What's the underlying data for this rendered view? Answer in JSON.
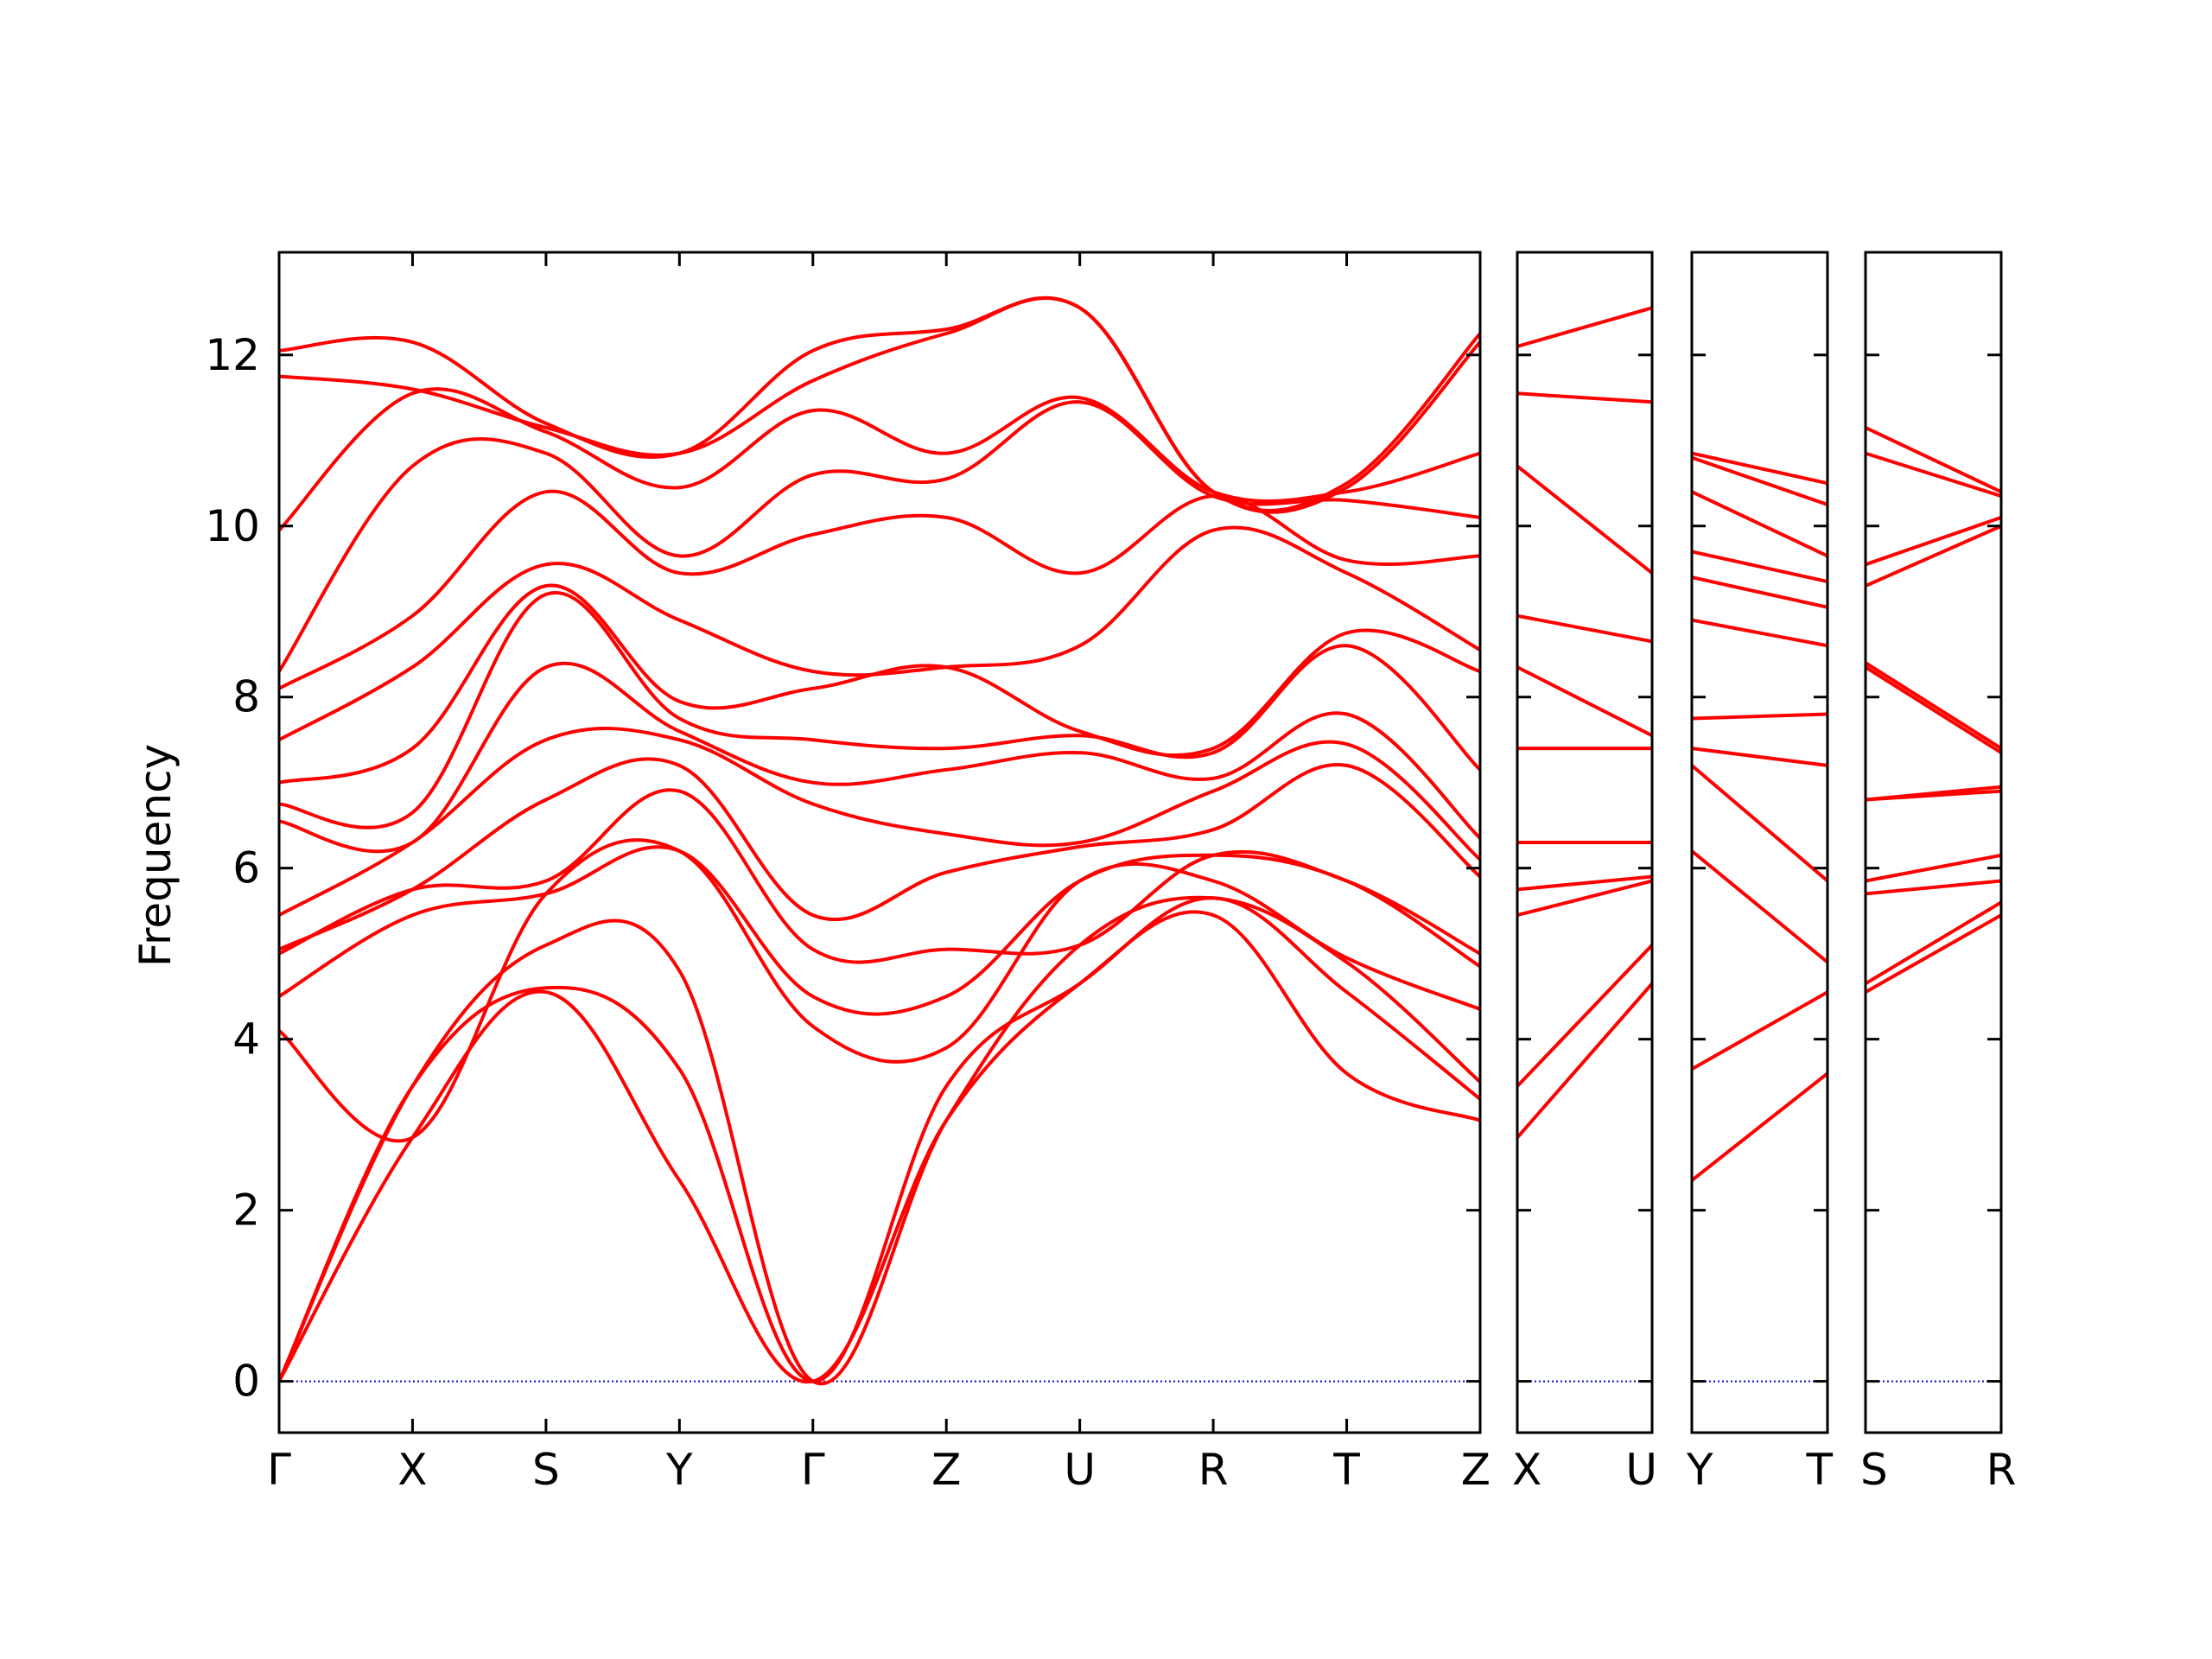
{
  "chart_data": {
    "type": "line",
    "title": "",
    "xlabel": "",
    "ylabel": "Frequency",
    "ylim": [
      -0.6,
      13.2
    ],
    "yticks": [
      0,
      2,
      4,
      6,
      8,
      10,
      12
    ],
    "grid": false,
    "legend": "none",
    "colors": {
      "band": "#ff0000",
      "zero_line": "#0000cc",
      "axis": "#000000"
    },
    "panels": [
      {
        "labels": [
          "Γ",
          "X",
          "S",
          "Y",
          "Γ",
          "Z",
          "U",
          "R",
          "T",
          "Z"
        ],
        "series": [
          {
            "name": "",
            "x": [
              0,
              1,
              2,
              3,
              4,
              5,
              6,
              7,
              8,
              9
            ],
            "y": [
              0,
              2.85,
              4.55,
              2.35,
              0,
              3.05,
              4.65,
              5.45,
              3.6,
              3.05
            ]
          },
          {
            "name": "",
            "x": [
              0,
              1,
              2,
              3,
              4,
              5,
              6,
              7,
              8,
              9
            ],
            "y": [
              0,
              3.45,
              4.6,
              3.65,
              0,
              3.45,
              4.65,
              5.65,
              4.55,
              3.3
            ]
          },
          {
            "name": "",
            "x": [
              0,
              1,
              2,
              3,
              4,
              5,
              6,
              7,
              8,
              9
            ],
            "y": [
              0,
              3.45,
              5.1,
              4.8,
              0,
              3.05,
              5.1,
              5.65,
              4.9,
              3.5
            ]
          },
          {
            "name": "",
            "x": [
              0,
              1,
              2,
              3,
              4,
              5,
              6,
              7,
              8,
              9
            ],
            "y": [
              4.1,
              2.85,
              5.7,
              6.2,
              4.15,
              3.9,
              5.85,
              5.85,
              4.95,
              4.35
            ]
          },
          {
            "name": "",
            "x": [
              0,
              1,
              2,
              3,
              4,
              5,
              6,
              7,
              8,
              9
            ],
            "y": [
              4.5,
              5.45,
              5.7,
              6.2,
              4.5,
              4.5,
              5.85,
              6.15,
              5.85,
              4.85
            ]
          },
          {
            "name": "",
            "x": [
              0,
              1,
              2,
              3,
              4,
              5,
              6,
              7,
              8,
              9
            ],
            "y": [
              5.0,
              5.75,
              5.85,
              6.9,
              5.05,
              5.05,
              5.1,
              6.15,
              5.85,
              5.0
            ]
          },
          {
            "name": "",
            "x": [
              0,
              1,
              2,
              3,
              4,
              5,
              6,
              7,
              8,
              9
            ],
            "y": [
              5.05,
              5.75,
              6.8,
              7.2,
              5.45,
              5.95,
              6.25,
              6.45,
              7.2,
              5.9
            ]
          },
          {
            "name": "",
            "x": [
              0,
              1,
              2,
              3,
              4,
              5,
              6,
              7,
              8,
              9
            ],
            "y": [
              5.45,
              6.3,
              7.5,
              7.5,
              6.75,
              6.4,
              6.3,
              6.9,
              7.45,
              6.1
            ]
          },
          {
            "name": "",
            "x": [
              0,
              1,
              2,
              3,
              4,
              5,
              6,
              7,
              8,
              9
            ],
            "y": [
              6.55,
              6.3,
              8.35,
              7.6,
              7.0,
              7.15,
              7.35,
              7.05,
              7.8,
              6.35
            ]
          },
          {
            "name": "",
            "x": [
              0,
              1,
              2,
              3,
              4,
              5,
              6,
              7,
              8,
              9
            ],
            "y": [
              6.75,
              6.65,
              9.2,
              7.75,
              7.5,
              7.4,
              7.55,
              7.35,
              8.6,
              7.15
            ]
          },
          {
            "name": "",
            "x": [
              0,
              1,
              2,
              3,
              4,
              5,
              6,
              7,
              8,
              9
            ],
            "y": [
              7.0,
              7.4,
              9.3,
              7.95,
              8.1,
              8.35,
              7.6,
              7.4,
              8.75,
              8.3
            ]
          },
          {
            "name": "",
            "x": [
              0,
              1,
              2,
              3,
              4,
              5,
              6,
              7,
              8,
              9
            ],
            "y": [
              7.5,
              8.35,
              9.55,
              8.9,
              8.3,
              8.35,
              8.6,
              9.95,
              9.45,
              8.55
            ]
          },
          {
            "name": "",
            "x": [
              0,
              1,
              2,
              3,
              4,
              5,
              6,
              7,
              8,
              9
            ],
            "y": [
              8.1,
              8.95,
              10.4,
              9.45,
              9.9,
              10.1,
              9.45,
              10.35,
              9.6,
              9.65
            ]
          },
          {
            "name": "",
            "x": [
              0,
              1,
              2,
              3,
              4,
              5,
              6,
              7,
              8,
              9
            ],
            "y": [
              8.3,
              10.7,
              10.85,
              9.65,
              10.6,
              10.55,
              11.45,
              10.35,
              10.3,
              10.1
            ]
          },
          {
            "name": "",
            "x": [
              0,
              1,
              2,
              3,
              4,
              5,
              6,
              7,
              8,
              9
            ],
            "y": [
              9.95,
              11.55,
              11.1,
              10.45,
              11.35,
              10.85,
              11.5,
              10.4,
              10.4,
              10.85
            ]
          },
          {
            "name": "",
            "x": [
              0,
              1,
              2,
              3,
              4,
              5,
              6,
              7,
              8,
              9
            ],
            "y": [
              11.75,
              11.6,
              11.15,
              10.85,
              11.7,
              12.25,
              12.55,
              10.4,
              10.45,
              12.15
            ]
          },
          {
            "name": "",
            "x": [
              0,
              1,
              2,
              3,
              4,
              5,
              6,
              7,
              8,
              9
            ],
            "y": [
              12.05,
              12.15,
              11.2,
              10.85,
              12.05,
              12.3,
              12.55,
              10.4,
              10.5,
              12.25
            ]
          }
        ]
      },
      {
        "labels": [
          "X",
          "U"
        ],
        "series": [
          {
            "name": "",
            "x": [
              0,
              1
            ],
            "y": [
              2.85,
              4.65
            ]
          },
          {
            "name": "",
            "x": [
              0,
              1
            ],
            "y": [
              3.45,
              5.1
            ]
          },
          {
            "name": "",
            "x": [
              0,
              1
            ],
            "y": [
              5.45,
              5.85
            ]
          },
          {
            "name": "",
            "x": [
              0,
              1
            ],
            "y": [
              5.75,
              5.9
            ]
          },
          {
            "name": "",
            "x": [
              0,
              1
            ],
            "y": [
              6.3,
              6.3
            ]
          },
          {
            "name": "",
            "x": [
              0,
              1
            ],
            "y": [
              6.3,
              6.3
            ]
          },
          {
            "name": "",
            "x": [
              0,
              1
            ],
            "y": [
              7.4,
              7.4
            ]
          },
          {
            "name": "",
            "x": [
              0,
              1
            ],
            "y": [
              8.35,
              7.55
            ]
          },
          {
            "name": "",
            "x": [
              0,
              1
            ],
            "y": [
              8.95,
              8.65
            ]
          },
          {
            "name": "",
            "x": [
              0,
              1
            ],
            "y": [
              10.7,
              9.45
            ]
          },
          {
            "name": "",
            "x": [
              0,
              1
            ],
            "y": [
              11.55,
              11.45
            ]
          },
          {
            "name": "",
            "x": [
              0,
              1
            ],
            "y": [
              12.1,
              12.55
            ]
          }
        ]
      },
      {
        "labels": [
          "Y",
          "T"
        ],
        "series": [
          {
            "name": "",
            "x": [
              0,
              1
            ],
            "y": [
              2.35,
              3.6
            ]
          },
          {
            "name": "",
            "x": [
              0,
              1
            ],
            "y": [
              3.65,
              4.55
            ]
          },
          {
            "name": "",
            "x": [
              0,
              1
            ],
            "y": [
              6.2,
              4.9
            ]
          },
          {
            "name": "",
            "x": [
              0,
              1
            ],
            "y": [
              7.2,
              5.85
            ]
          },
          {
            "name": "",
            "x": [
              0,
              1
            ],
            "y": [
              7.4,
              7.2
            ]
          },
          {
            "name": "",
            "x": [
              0,
              1
            ],
            "y": [
              7.75,
              7.8
            ]
          },
          {
            "name": "",
            "x": [
              0,
              1
            ],
            "y": [
              8.9,
              8.6
            ]
          },
          {
            "name": "",
            "x": [
              0,
              1
            ],
            "y": [
              9.4,
              9.05
            ]
          },
          {
            "name": "",
            "x": [
              0,
              1
            ],
            "y": [
              9.7,
              9.35
            ]
          },
          {
            "name": "",
            "x": [
              0,
              1
            ],
            "y": [
              10.4,
              9.65
            ]
          },
          {
            "name": "",
            "x": [
              0,
              1
            ],
            "y": [
              10.8,
              10.25
            ]
          },
          {
            "name": "",
            "x": [
              0,
              1
            ],
            "y": [
              10.85,
              10.5
            ]
          }
        ]
      },
      {
        "labels": [
          "S",
          "R"
        ],
        "series": [
          {
            "name": "",
            "x": [
              0,
              1
            ],
            "y": [
              4.55,
              5.45
            ]
          },
          {
            "name": "",
            "x": [
              0,
              1
            ],
            "y": [
              4.65,
              5.6
            ]
          },
          {
            "name": "",
            "x": [
              0,
              1
            ],
            "y": [
              5.7,
              5.85
            ]
          },
          {
            "name": "",
            "x": [
              0,
              1
            ],
            "y": [
              5.85,
              6.15
            ]
          },
          {
            "name": "",
            "x": [
              0,
              1
            ],
            "y": [
              6.8,
              6.9
            ]
          },
          {
            "name": "",
            "x": [
              0,
              1
            ],
            "y": [
              6.8,
              6.95
            ]
          },
          {
            "name": "",
            "x": [
              0,
              1
            ],
            "y": [
              8.35,
              7.35
            ]
          },
          {
            "name": "",
            "x": [
              0,
              1
            ],
            "y": [
              8.4,
              7.4
            ]
          },
          {
            "name": "",
            "x": [
              0,
              1
            ],
            "y": [
              9.3,
              10.0
            ]
          },
          {
            "name": "",
            "x": [
              0,
              1
            ],
            "y": [
              9.55,
              10.1
            ]
          },
          {
            "name": "",
            "x": [
              0,
              1
            ],
            "y": [
              10.85,
              10.35
            ]
          },
          {
            "name": "",
            "x": [
              0,
              1
            ],
            "y": [
              11.15,
              10.4
            ]
          }
        ]
      }
    ]
  }
}
